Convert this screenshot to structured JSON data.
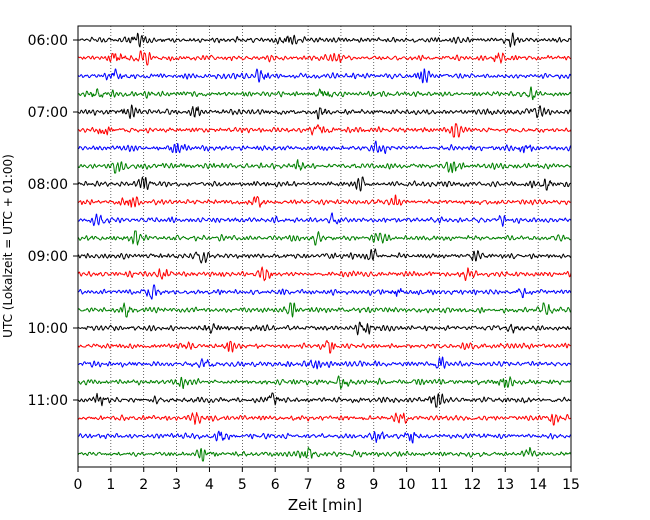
{
  "chart_data": {
    "type": "line",
    "title": "",
    "xlabel": "Zeit  [min]",
    "ylabel": "UTC (Lokalzeit = UTC + 01:00)",
    "xlim": [
      0,
      15
    ],
    "x_ticks": [
      "0",
      "1",
      "2",
      "3",
      "4",
      "5",
      "6",
      "7",
      "8",
      "9",
      "10",
      "11",
      "12",
      "13",
      "14",
      "15"
    ],
    "y_ticks": [
      "06:00",
      "07:00",
      "08:00",
      "09:00",
      "10:00",
      "11:00"
    ],
    "grid": "vertical dotted lines at each minute",
    "trace_interval_min": 15,
    "trace_start": "06:00",
    "trace_count": 24,
    "trace_colors": [
      "#000000",
      "#ff0000",
      "#0000ff",
      "#008000"
    ],
    "series": [
      {
        "start": "06:00",
        "color": "#000000",
        "bursts_at_min": [
          1.8,
          6.3,
          13.2
        ]
      },
      {
        "start": "06:15",
        "color": "#ff0000",
        "bursts_at_min": [
          1.2,
          2.0,
          7.9,
          12.8
        ]
      },
      {
        "start": "06:30",
        "color": "#0000ff",
        "bursts_at_min": [
          1.1,
          5.6,
          10.5
        ]
      },
      {
        "start": "06:45",
        "color": "#008000",
        "bursts_at_min": [
          0.6,
          7.5,
          13.8
        ]
      },
      {
        "start": "07:00",
        "color": "#000000",
        "bursts_at_min": [
          1.5,
          3.6,
          7.4,
          14.0
        ]
      },
      {
        "start": "07:15",
        "color": "#ff0000",
        "bursts_at_min": [
          0.8,
          7.3,
          11.5
        ]
      },
      {
        "start": "07:30",
        "color": "#0000ff",
        "bursts_at_min": [
          3.0,
          9.2,
          13.6
        ]
      },
      {
        "start": "07:45",
        "color": "#008000",
        "bursts_at_min": [
          1.2,
          6.7,
          11.4
        ]
      },
      {
        "start": "08:00",
        "color": "#000000",
        "bursts_at_min": [
          2.0,
          8.6,
          14.3
        ]
      },
      {
        "start": "08:15",
        "color": "#ff0000",
        "bursts_at_min": [
          1.6,
          5.5,
          9.7
        ]
      },
      {
        "start": "08:30",
        "color": "#0000ff",
        "bursts_at_min": [
          0.6,
          7.8,
          12.9
        ]
      },
      {
        "start": "08:45",
        "color": "#008000",
        "bursts_at_min": [
          1.8,
          7.2,
          9.2
        ]
      },
      {
        "start": "09:00",
        "color": "#000000",
        "bursts_at_min": [
          3.8,
          9.0,
          12.1
        ]
      },
      {
        "start": "09:15",
        "color": "#ff0000",
        "bursts_at_min": [
          2.6,
          5.7,
          11.9
        ]
      },
      {
        "start": "09:30",
        "color": "#0000ff",
        "bursts_at_min": [
          2.2,
          9.7,
          13.5
        ]
      },
      {
        "start": "09:45",
        "color": "#008000",
        "bursts_at_min": [
          1.5,
          6.5,
          14.2
        ]
      },
      {
        "start": "10:00",
        "color": "#000000",
        "bursts_at_min": [
          4.0,
          8.7,
          13.3
        ]
      },
      {
        "start": "10:15",
        "color": "#ff0000",
        "bursts_at_min": [
          3.3,
          4.6,
          7.6
        ]
      },
      {
        "start": "10:30",
        "color": "#0000ff",
        "bursts_at_min": [
          3.9,
          7.2,
          11.0
        ]
      },
      {
        "start": "10:45",
        "color": "#008000",
        "bursts_at_min": [
          3.2,
          8.1,
          13.0
        ]
      },
      {
        "start": "11:00",
        "color": "#000000",
        "bursts_at_min": [
          0.6,
          5.9,
          10.9
        ]
      },
      {
        "start": "11:15",
        "color": "#ff0000",
        "bursts_at_min": [
          3.6,
          9.8,
          14.5
        ]
      },
      {
        "start": "11:30",
        "color": "#0000ff",
        "bursts_at_min": [
          4.4,
          9.1,
          10.1
        ]
      },
      {
        "start": "11:45",
        "color": "#008000",
        "bursts_at_min": [
          3.8,
          7.0,
          13.7
        ]
      }
    ]
  }
}
